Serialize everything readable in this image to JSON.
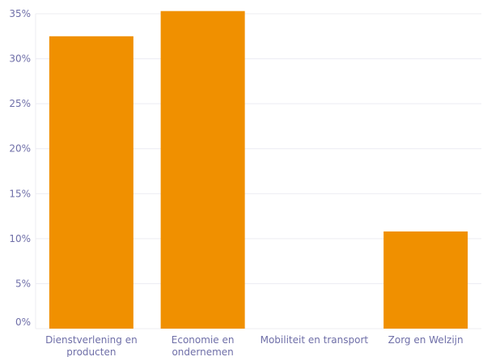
{
  "chart_data": {
    "type": "bar",
    "categories": [
      [
        "Dienstverlening en",
        "producten"
      ],
      [
        "Economie en",
        "ondernemen"
      ],
      [
        "Mobiliteit en transport"
      ],
      [
        "Zorg en Welzijn"
      ]
    ],
    "values": [
      32.5,
      35.3,
      0,
      10.8
    ],
    "ylim": [
      0,
      35
    ],
    "yticks": [
      0,
      5,
      10,
      15,
      20,
      25,
      30,
      35
    ],
    "ytick_suffix": "%",
    "grid": true,
    "colors": {
      "bar": "#f09000",
      "grid": "#ececf2",
      "label": "#6f6fa8"
    }
  }
}
